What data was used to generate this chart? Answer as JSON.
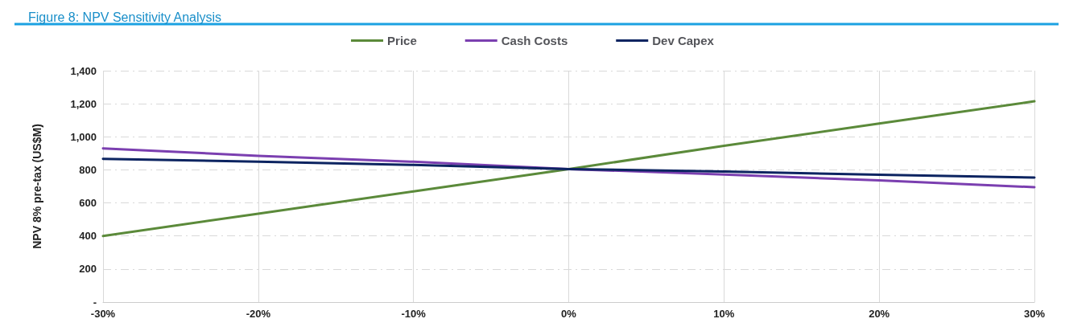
{
  "chart_data": {
    "type": "line",
    "title": "Figure 8: NPV Sensitivity Analysis",
    "ylabel": "NPV 8% pre-tax (US$M)",
    "x": [
      -30,
      -20,
      -10,
      0,
      10,
      20,
      30
    ],
    "xlim": [
      -30,
      30
    ],
    "xticks": [
      {
        "value": -30,
        "label": "-30%"
      },
      {
        "value": -20,
        "label": "-20%"
      },
      {
        "value": -10,
        "label": "-10%"
      },
      {
        "value": 0,
        "label": "0%"
      },
      {
        "value": 10,
        "label": "10%"
      },
      {
        "value": 20,
        "label": "20%"
      },
      {
        "value": 30,
        "label": "30%"
      }
    ],
    "ylim": [
      0,
      1400
    ],
    "yticks": [
      {
        "value": 0,
        "label": "-"
      },
      200,
      400,
      600,
      800,
      {
        "value": 1000,
        "label": "1,000"
      },
      {
        "value": 1200,
        "label": "1,200"
      },
      {
        "value": 1400,
        "label": "1,400"
      }
    ],
    "series": [
      {
        "name": "Price",
        "color": "#5b8a3a",
        "values": [
          400,
          535,
          670,
          805,
          945,
          1080,
          1215
        ]
      },
      {
        "name": "Cash Costs",
        "color": "#7b3fb0",
        "values": [
          930,
          885,
          849,
          805,
          772,
          736,
          695
        ]
      },
      {
        "name": "Dev Capex",
        "color": "#0c2461",
        "values": [
          867,
          850,
          830,
          805,
          790,
          770,
          754
        ]
      }
    ],
    "grid": true,
    "legend": "top",
    "marker": "none",
    "line_style": "solid"
  }
}
